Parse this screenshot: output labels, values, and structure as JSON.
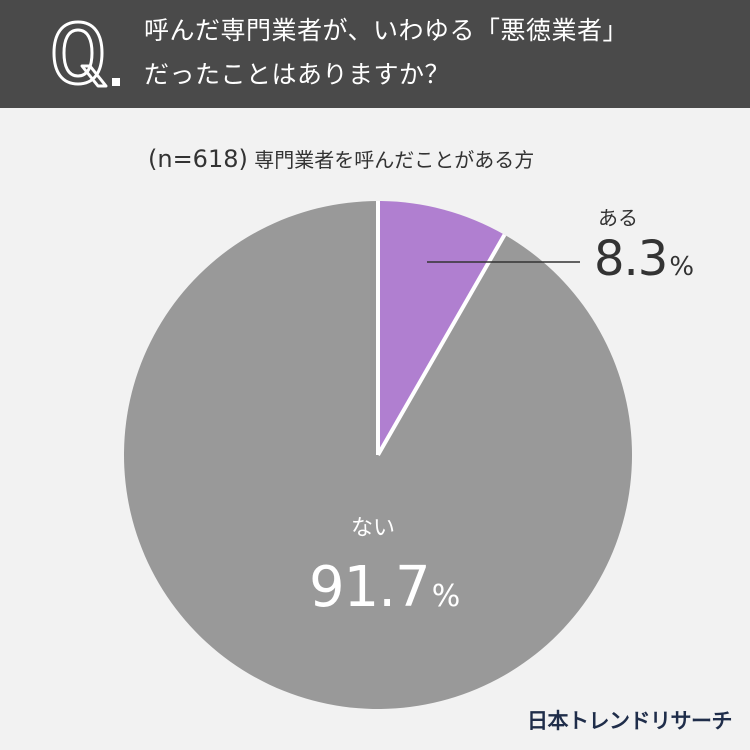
{
  "question": {
    "line1": "呼んだ専門業者が、いわゆる「悪徳業者」",
    "line2": "だったことはありますか？"
  },
  "sample": {
    "n_text": "(n=618)",
    "description": "専門業者を呼んだことがある方"
  },
  "chart_data": {
    "type": "pie",
    "slices": [
      {
        "label": "ある",
        "value": 8.3,
        "color": "#b07fd0"
      },
      {
        "label": "ない",
        "value": 91.7,
        "color": "#999999"
      }
    ],
    "unit": "%"
  },
  "labels": {
    "aru": {
      "label": "ある",
      "value": "8.3",
      "unit": "%"
    },
    "nai": {
      "label": "ない",
      "value": "91.7",
      "unit": "%"
    }
  },
  "brand": "日本トレンドリサーチ",
  "colors": {
    "header_bg": "#4a4a4a",
    "background": "#f2f2f2",
    "slice_aru": "#b07fd0",
    "slice_nai": "#999999"
  }
}
